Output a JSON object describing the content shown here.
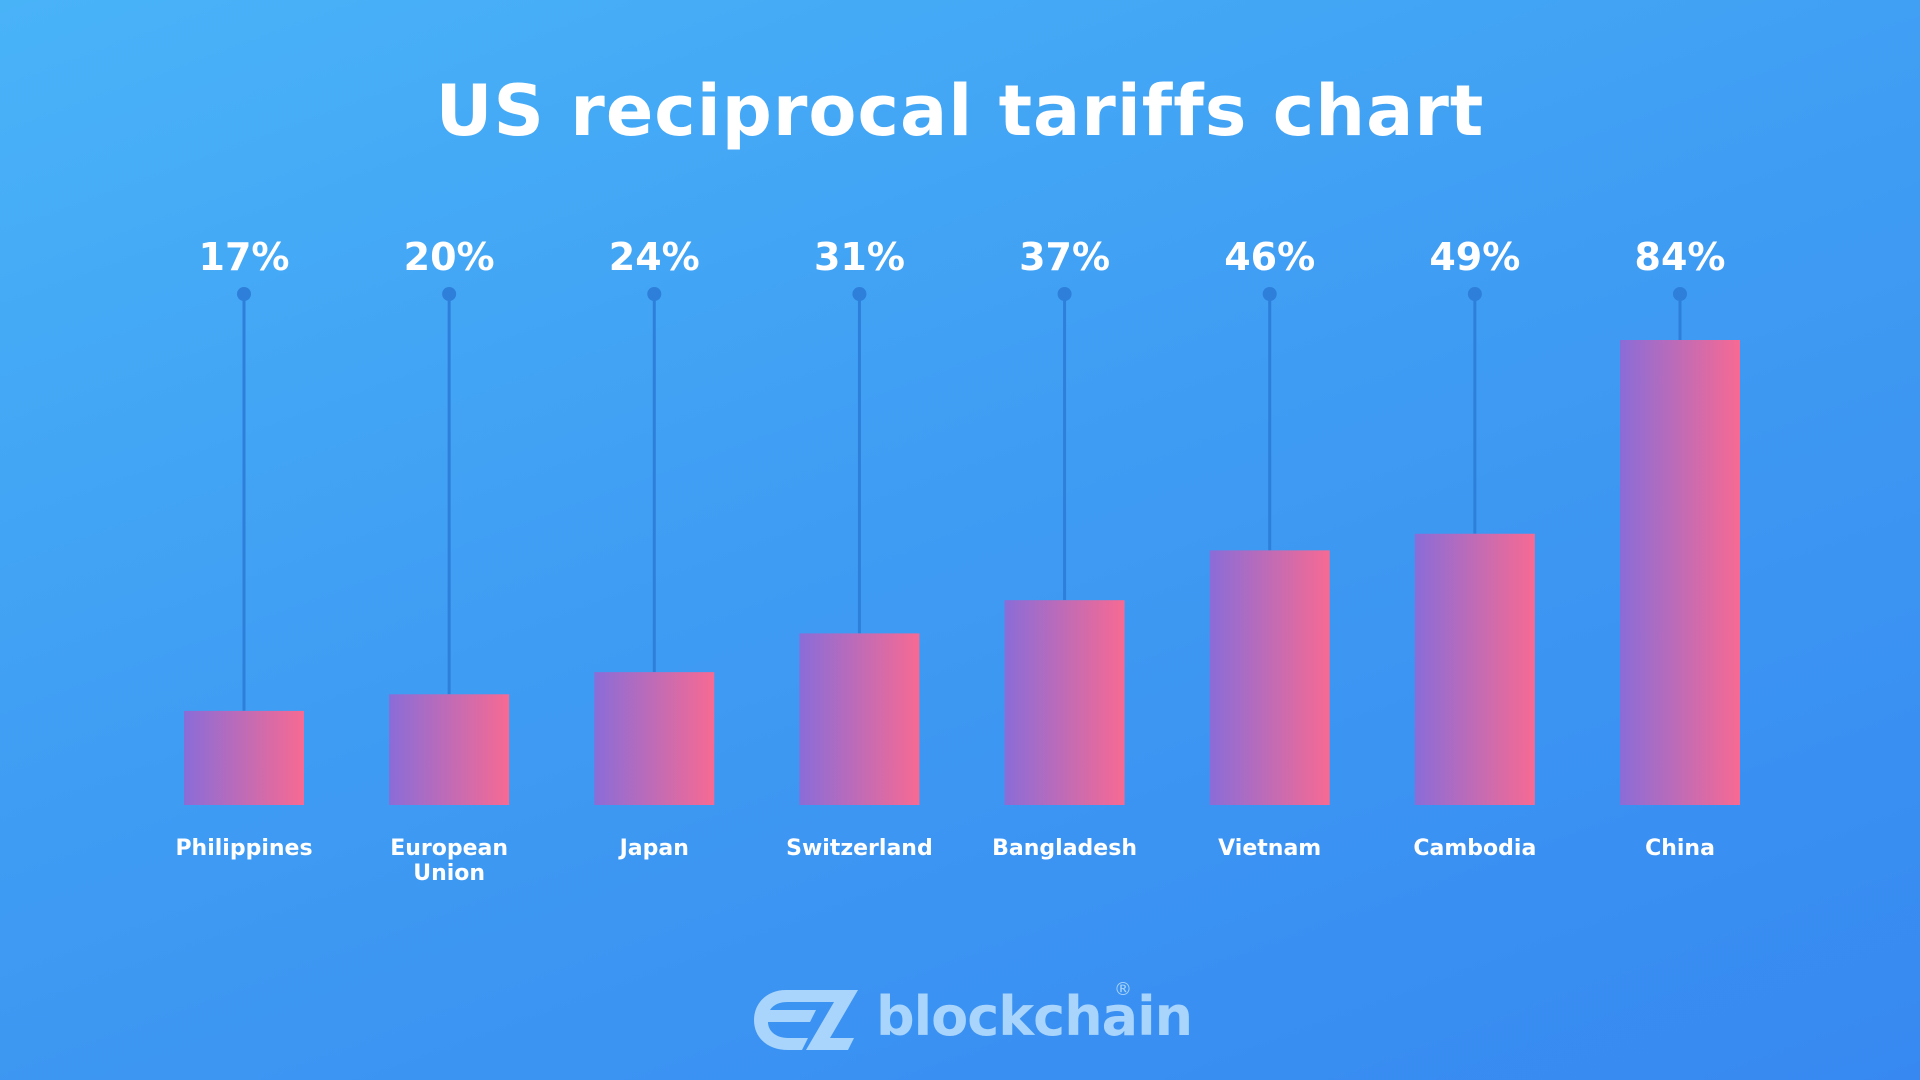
{
  "colors": {
    "bar_start": "#8a6cd8",
    "bar_end": "#f76a93",
    "stem": "#2e7fd9",
    "text": "#ffffff",
    "brand": "#a9d4fb"
  },
  "chart_data": {
    "type": "bar",
    "title": "US reciprocal tariffs chart",
    "categories": [
      [
        "Philippines"
      ],
      [
        "European",
        "Union"
      ],
      [
        "Japan"
      ],
      [
        "Switzerland"
      ],
      [
        "Bangladesh"
      ],
      [
        "Vietnam"
      ],
      [
        "Cambodia"
      ],
      [
        "China"
      ]
    ],
    "values": [
      17,
      20,
      24,
      31,
      37,
      46,
      49,
      84
    ],
    "value_labels": [
      "17%",
      "20%",
      "24%",
      "31%",
      "37%",
      "46%",
      "49%",
      "84%"
    ],
    "ylim": [
      0,
      84
    ],
    "xlabel": "",
    "ylabel": "",
    "grid": false
  },
  "brand": {
    "name": "blockchain",
    "mark": "®",
    "logo_icon": "ez-logo-icon"
  }
}
